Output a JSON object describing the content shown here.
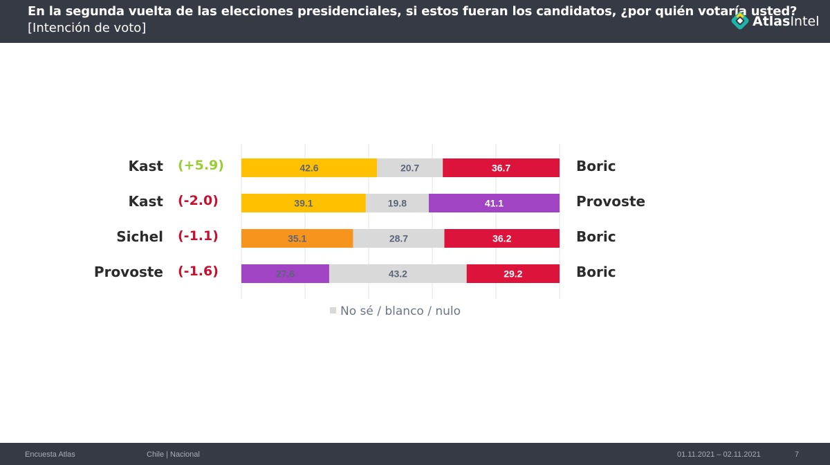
{
  "header": {
    "title": "En la segunda vuelta de las elecciones presidenciales, si estos fueran los candidatos, ¿por quién votaría usted?",
    "subtitle": "[Intención de voto]",
    "logo_bold": "Atlas",
    "logo_light": "Intel"
  },
  "footer": {
    "source": "Encuesta Atlas",
    "scope": "Chile | Nacional",
    "dates": "01.11.2021 – 02.11.2021",
    "page": "7"
  },
  "colors": {
    "kast": "#ffc000",
    "sichel": "#f7941d",
    "provoste": "#a044c4",
    "boric": "#dc143c",
    "undecided": "#d9d9d9",
    "positive_change": "#9acd32",
    "negative_change": "#c8102e"
  },
  "chart_data": {
    "type": "bar",
    "stacked": true,
    "orientation": "horizontal",
    "xlim": [
      0,
      100
    ],
    "grid": true,
    "legend": {
      "position": "bottom",
      "entries": [
        "No sé / blanco / nulo"
      ]
    },
    "rows": [
      {
        "left_candidate": "Kast",
        "change": "(+5.9)",
        "left_value": 42.6,
        "undecided": 20.7,
        "right_value": 36.7,
        "right_candidate": "Boric",
        "left_color": "#ffc000",
        "right_color": "#dc143c"
      },
      {
        "left_candidate": "Kast",
        "change": "(-2.0)",
        "left_value": 39.1,
        "undecided": 19.8,
        "right_value": 41.1,
        "right_candidate": "Provoste",
        "left_color": "#ffc000",
        "right_color": "#a044c4"
      },
      {
        "left_candidate": "Sichel",
        "change": "(-1.1)",
        "left_value": 35.1,
        "undecided": 28.7,
        "right_value": 36.2,
        "right_candidate": "Boric",
        "left_color": "#f7941d",
        "right_color": "#dc143c"
      },
      {
        "left_candidate": "Provoste",
        "change": "(-1.6)",
        "left_value": 27.6,
        "undecided": 43.2,
        "right_value": 29.2,
        "right_candidate": "Boric",
        "left_color": "#a044c4",
        "right_color": "#dc143c"
      }
    ]
  }
}
